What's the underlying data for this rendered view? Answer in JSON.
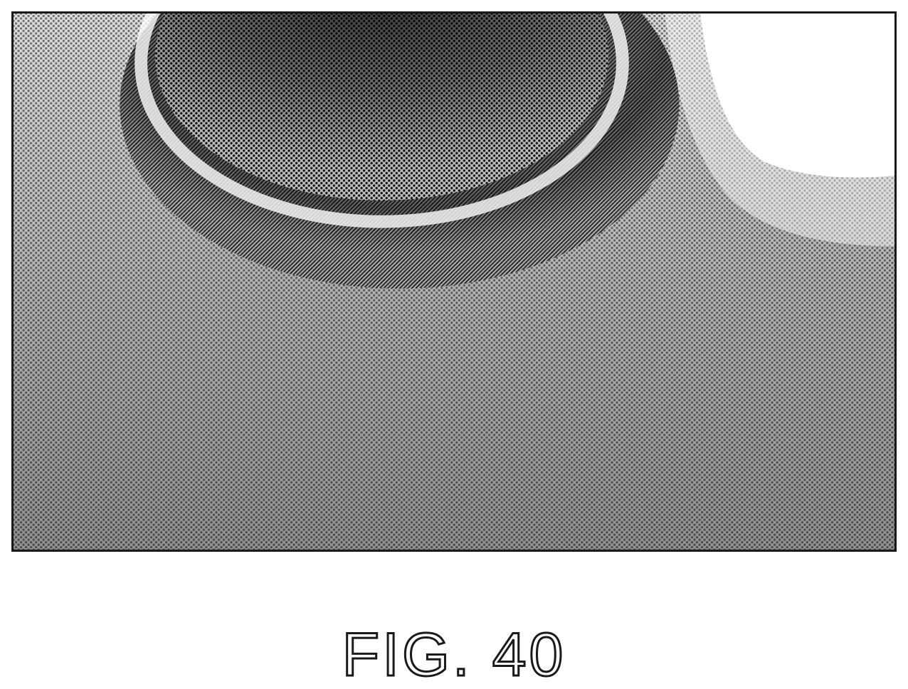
{
  "figure": {
    "caption": "FIG. 40"
  },
  "colors": {
    "ink": "#1a1a1a",
    "paper": "#ffffff"
  }
}
